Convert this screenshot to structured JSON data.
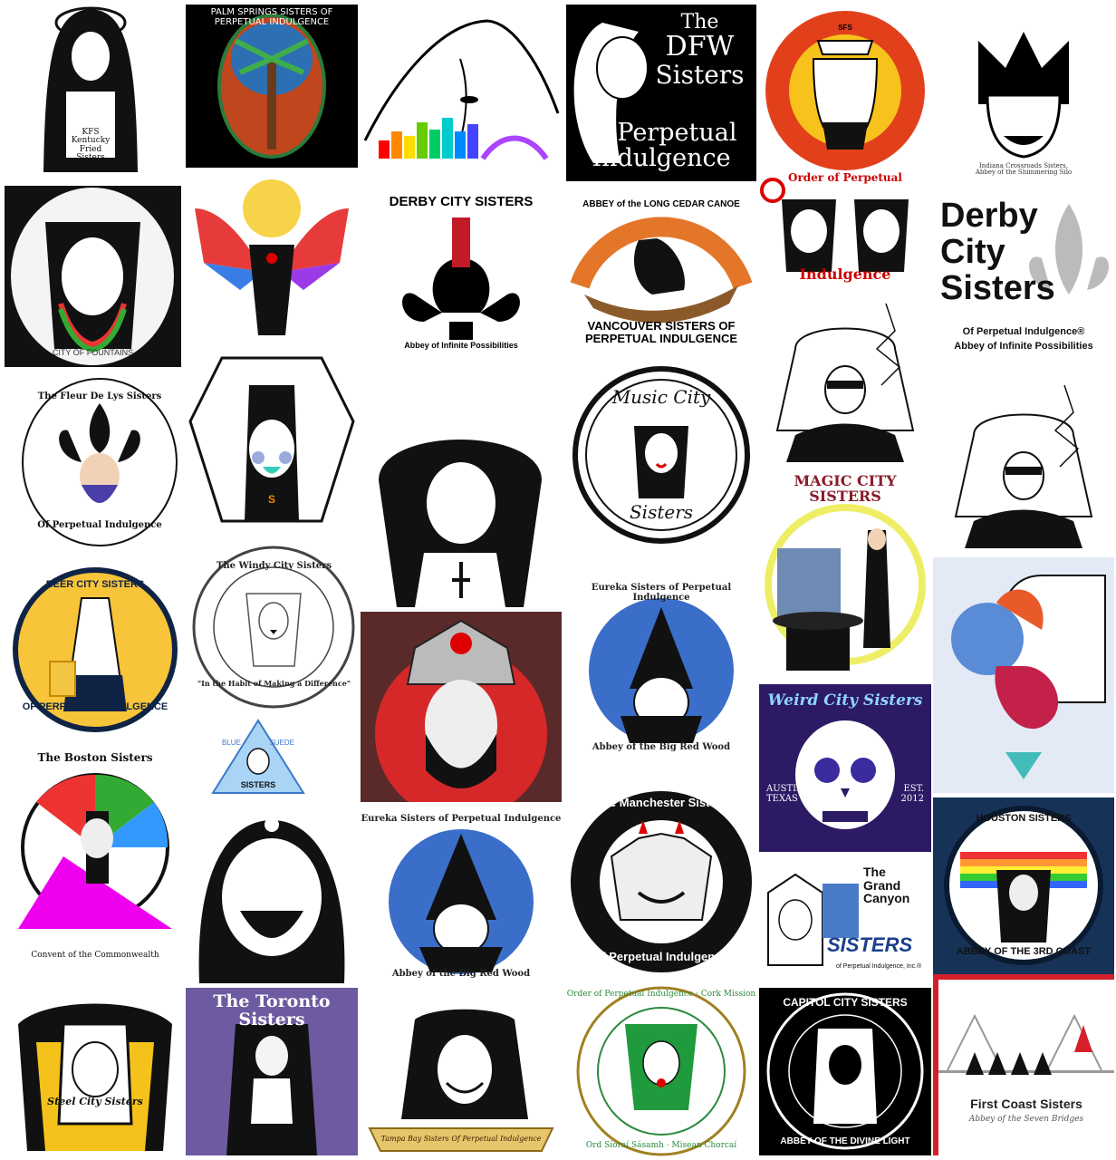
{
  "logos": [
    {
      "id": "kfs",
      "text": [
        "KFS",
        "Kentucky",
        "Fried",
        "Sisters"
      ]
    },
    {
      "id": "palm-springs",
      "text": "PALM SPRINGS SISTERS OF PERPETUAL INDULGENCE"
    },
    {
      "id": "skyline-nun",
      "text": ""
    },
    {
      "id": "dfw",
      "text": [
        "The",
        "DFW",
        "Sisters",
        "of Perpetual",
        "Indulgence"
      ],
      "mark": "®"
    },
    {
      "id": "sfs-sun",
      "text": "SFS"
    },
    {
      "id": "indiana",
      "text": [
        "Indiana Crossroads Sisters,",
        "Abbey of the Shimmering Silo"
      ]
    },
    {
      "id": "city-of-fountains",
      "text": "CITY OF FOUNTAINS"
    },
    {
      "id": "rainbow-angel",
      "text": ""
    },
    {
      "id": "derby-circle",
      "text": "DERBY CITY SISTERS",
      "sub": "Abbey of Infinite Possibilities"
    },
    {
      "id": "vancouver",
      "arc": "ABBEY of the LONG CEDAR CANOE",
      "text": [
        "VANCOUVER SISTERS OF",
        "PERPETUAL INDULGENCE"
      ]
    },
    {
      "id": "order-perpetual",
      "text": [
        "Order of Perpetual",
        "Indulgence"
      ]
    },
    {
      "id": "derby-big",
      "text": [
        "Derby",
        "City",
        "Sisters"
      ],
      "sub1": "Of Perpetual Indulgence®",
      "sub2": "Abbey of Infinite Possibilities"
    },
    {
      "id": "fleur-de-lys",
      "arc": "The Fleur De Lys Sisters",
      "bottom": "Of Perpetual Indulgence"
    },
    {
      "id": "white-veil-nun",
      "text": "S"
    },
    {
      "id": "black-hood",
      "text": ""
    },
    {
      "id": "music-city",
      "text": [
        "Music City",
        "Sisters"
      ]
    },
    {
      "id": "tree-nun-1",
      "text": ""
    },
    {
      "id": "tree-nun-2",
      "text": ""
    },
    {
      "id": "beer-city",
      "text": "BEER CITY SISTERS",
      "bottom": "OF PERPETUAL INDULGENCE"
    },
    {
      "id": "windy-city",
      "text": "The Windy City Sisters",
      "bottom": "\"In the Habit of Making a Difference\""
    },
    {
      "id": "rose-bishop",
      "text": ""
    },
    {
      "id": "eureka-1",
      "text": "Eureka Sisters of Perpetual Indulgence",
      "bottom": "Abbey of the Big Red Wood"
    },
    {
      "id": "magic-city",
      "text": "MAGIC CITY SISTERS"
    },
    {
      "id": "rainbow-flower",
      "text": ""
    },
    {
      "id": "blue-suede",
      "text": [
        "BLUE",
        "SUEDE",
        "SISTERS"
      ]
    },
    {
      "id": "weird-city",
      "text": "Weird City Sisters",
      "left": [
        "AUSTIN",
        "TEXAS"
      ],
      "right": [
        "EST.",
        "2012"
      ]
    },
    {
      "id": "boston",
      "text": "The Boston Sisters",
      "bottom": "Convent of the Commonwealth"
    },
    {
      "id": "laughing-nun",
      "text": ""
    },
    {
      "id": "eureka-2",
      "text": "Eureka Sisters of Perpetual Indulgence",
      "bottom": "Abbey of the Big Red Wood"
    },
    {
      "id": "manchester",
      "text": "The Manchester Sisters",
      "bottom": "of Perpetual Indulgence"
    },
    {
      "id": "grand-canyon",
      "text": [
        "The",
        "Grand",
        "Canyon",
        "SISTERS"
      ],
      "sub": "of Perpetual Indulgence, Inc.®"
    },
    {
      "id": "houston",
      "text": "HOUSTON SISTERS",
      "bottom": "ABBEY OF THE 3RD COAST"
    },
    {
      "id": "steel-city",
      "text": "Steel City Sisters"
    },
    {
      "id": "toronto",
      "text": "The Toronto Sisters"
    },
    {
      "id": "tampa-bay",
      "text": "Tampa Bay Sisters Of Perpetual Indulgence"
    },
    {
      "id": "cork",
      "text": "Order of Perpetual Indulgence · Cork Mission",
      "bottom": "Ord Síoraí Sásamh · Misean Chorcaí"
    },
    {
      "id": "capitol-city",
      "text": "CAPITOL CITY SISTERS",
      "bottom": "ABBEY OF THE DIVINE LIGHT"
    },
    {
      "id": "first-coast",
      "text": "First Coast Sisters",
      "sub": "Abbey of the Seven Bridges"
    }
  ],
  "colors": {
    "black": "#000000",
    "white": "#ffffff",
    "red": "#d6202a",
    "gold": "#f5c518",
    "navy": "#0d2a52",
    "purple": "#3a1f6e"
  }
}
